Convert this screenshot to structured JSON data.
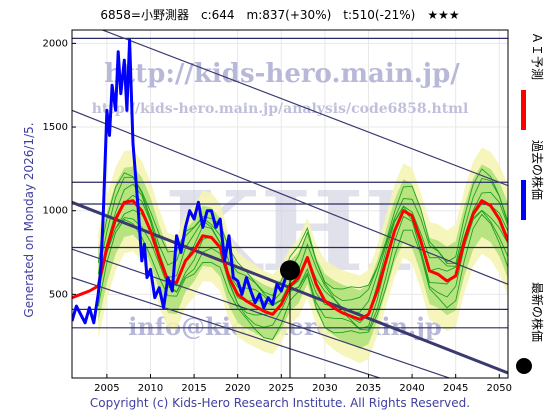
{
  "header": {
    "code_name": "6858=小野測器",
    "current": "c:644",
    "mid": "m:837(+30%)",
    "target": "t:510(-21%)",
    "stars": "★★★"
  },
  "generated": "Generated on Monday 2026/1/5.",
  "copyright": "Copyright (c) Kids-Hero Research Institute. All Rights Reserved.",
  "watermarks": {
    "url1": "http://kids-hero.main.jp/",
    "url2": "http://kids-hero.main.jp/analysis/code6858.html",
    "big": "KHI",
    "email": "info@kids-hero.main.jp"
  },
  "legend": [
    {
      "label": "ＡＩ予測",
      "color": "#ff0000"
    },
    {
      "label": "過去の株価",
      "color": "#0000ff"
    },
    {
      "label": "最新の株価",
      "color": "#000000"
    }
  ],
  "chart_data": {
    "type": "line",
    "xlim": [
      2001,
      2051
    ],
    "ylim": [
      0,
      2080
    ],
    "xticks": [
      2005,
      2010,
      2015,
      2020,
      2025,
      2030,
      2035,
      2040,
      2045,
      2050
    ],
    "yticks": [
      0,
      500,
      1000,
      1500,
      2000
    ],
    "hlines": [
      2030,
      1170,
      1040,
      780,
      410,
      300
    ],
    "trend_lines": [
      {
        "x": [
          2001,
          2051
        ],
        "y": [
          2150,
          1150
        ]
      },
      {
        "x": [
          2001,
          2051
        ],
        "y": [
          1600,
          560
        ]
      },
      {
        "x": [
          2001,
          2051
        ],
        "y": [
          1050,
          30
        ]
      },
      {
        "x": [
          2001,
          2051
        ],
        "y": [
          770,
          -120
        ]
      },
      {
        "x": [
          2001,
          2051
        ],
        "y": [
          600,
          -250
        ]
      }
    ],
    "latest_point": {
      "x": 2026.0,
      "y": 644
    },
    "series": [
      {
        "name": "過去の株価",
        "color": "#0000ff",
        "x": [
          2001.0,
          2001.5,
          2002.0,
          2002.5,
          2003.0,
          2003.5,
          2004.0,
          2004.3,
          2004.6,
          2005.0,
          2005.3,
          2005.6,
          2006.0,
          2006.3,
          2006.6,
          2007.0,
          2007.3,
          2007.6,
          2008.0,
          2008.3,
          2008.6,
          2009.0,
          2009.3,
          2009.6,
          2010.0,
          2010.5,
          2011.0,
          2011.5,
          2012.0,
          2012.5,
          2013.0,
          2013.5,
          2014.0,
          2014.5,
          2015.0,
          2015.5,
          2016.0,
          2016.5,
          2017.0,
          2017.5,
          2018.0,
          2018.5,
          2019.0,
          2019.5,
          2020.0,
          2020.5,
          2021.0,
          2021.5,
          2022.0,
          2022.5,
          2023.0,
          2023.5,
          2024.0,
          2024.5,
          2025.0,
          2025.5,
          2026.0
        ],
        "y": [
          340,
          430,
          380,
          330,
          420,
          330,
          500,
          650,
          1000,
          1600,
          1450,
          1750,
          1600,
          1950,
          1700,
          1900,
          1600,
          2020,
          1400,
          1200,
          1000,
          700,
          800,
          600,
          650,
          480,
          540,
          420,
          600,
          520,
          850,
          750,
          900,
          1000,
          950,
          1050,
          900,
          1000,
          1000,
          900,
          950,
          700,
          850,
          600,
          580,
          500,
          600,
          520,
          450,
          500,
          420,
          480,
          440,
          560,
          520,
          600,
          644
        ]
      },
      {
        "name": "ＡＩ予測",
        "color": "#ff0000",
        "x": [
          2001.0,
          2002.0,
          2003.0,
          2004.0,
          2005.0,
          2006.0,
          2007.0,
          2008.0,
          2009.0,
          2010.0,
          2011.0,
          2012.0,
          2013.0,
          2014.0,
          2015.0,
          2016.0,
          2017.0,
          2018.0,
          2019.0,
          2020.0,
          2021.0,
          2022.0,
          2023.0,
          2024.0,
          2025.0,
          2026.0,
          2027.0,
          2028.0,
          2029.0,
          2030.0,
          2031.0,
          2032.0,
          2033.0,
          2034.0,
          2035.0,
          2036.0,
          2037.0,
          2038.0,
          2039.0,
          2040.0,
          2041.0,
          2042.0,
          2043.0,
          2044.0,
          2045.0,
          2046.0,
          2047.0,
          2048.0,
          2049.0,
          2050.0,
          2051.0
        ],
        "y": [
          480,
          500,
          520,
          550,
          780,
          950,
          1050,
          1060,
          1000,
          880,
          720,
          580,
          570,
          700,
          760,
          850,
          840,
          780,
          600,
          500,
          460,
          430,
          400,
          380,
          440,
          550,
          600,
          720,
          560,
          460,
          420,
          390,
          370,
          350,
          380,
          520,
          700,
          880,
          1000,
          970,
          820,
          640,
          620,
          580,
          610,
          820,
          980,
          1060,
          1030,
          950,
          820
        ]
      }
    ]
  }
}
